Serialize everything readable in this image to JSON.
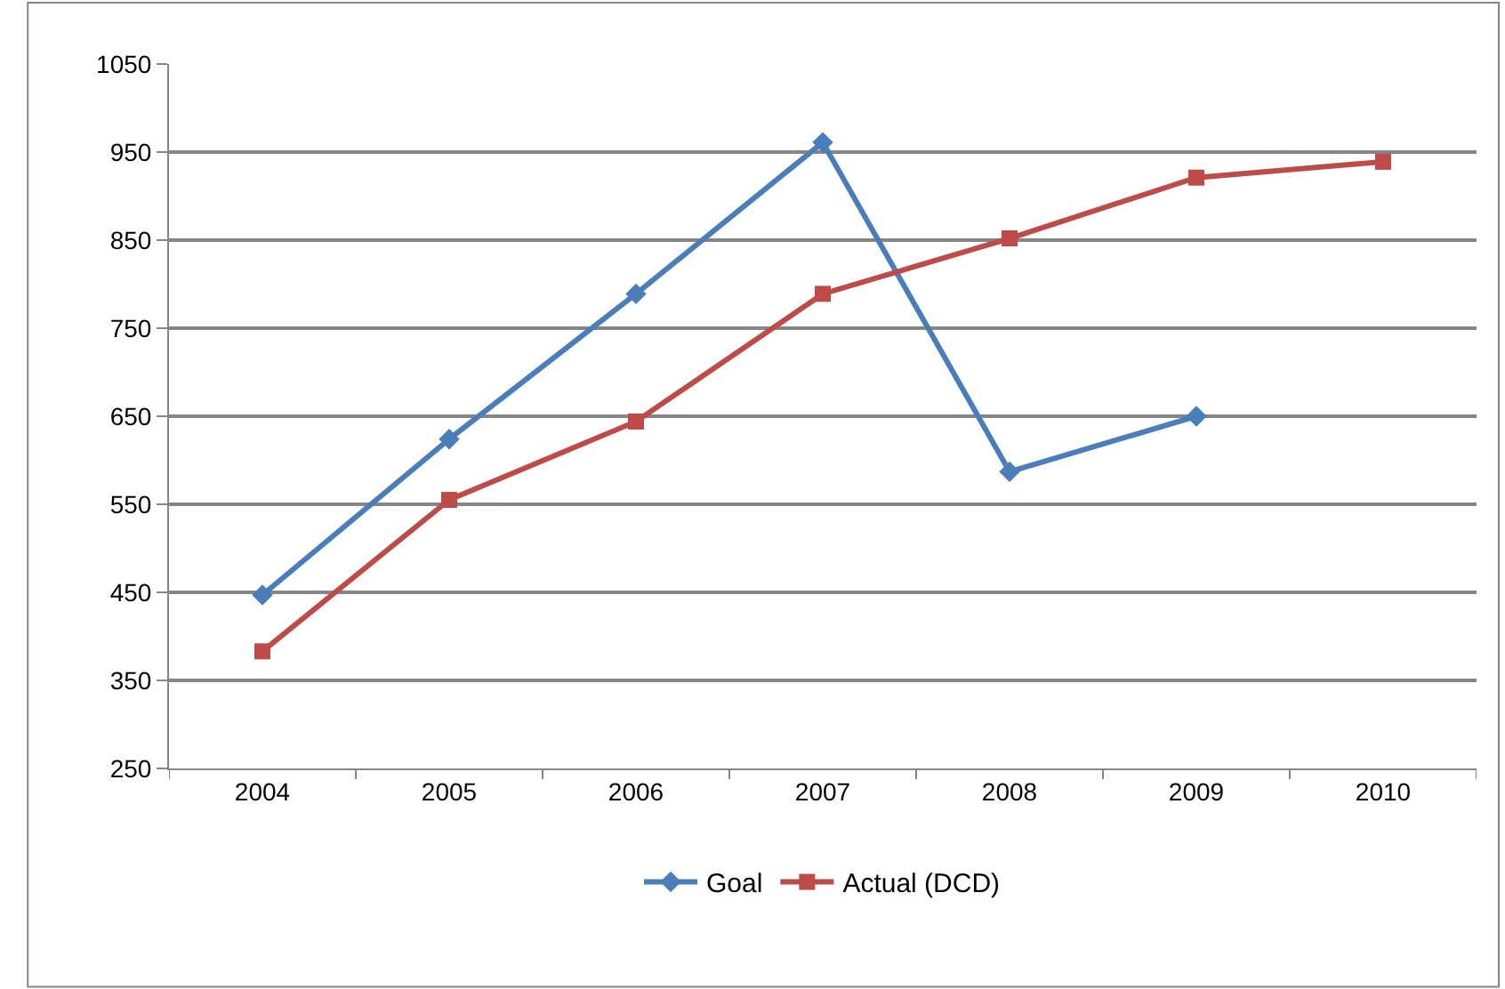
{
  "chart_data": {
    "type": "line",
    "categories": [
      "2004",
      "2005",
      "2006",
      "2007",
      "2008",
      "2009",
      "2010"
    ],
    "series": [
      {
        "name": "Goal",
        "color": "#4a7ebb",
        "marker": "diamond",
        "values": [
          447,
          624,
          789,
          961,
          587,
          650,
          null
        ]
      },
      {
        "name": "Actual (DCD)",
        "color": "#be4b48",
        "marker": "square",
        "values": [
          383,
          555,
          644,
          789,
          852,
          921,
          939
        ]
      }
    ],
    "ylim": [
      250,
      1050
    ],
    "yticks": [
      250,
      350,
      450,
      550,
      650,
      750,
      850,
      950,
      1050
    ],
    "grid": "y",
    "legend": "bottom",
    "line_style": "solid"
  }
}
